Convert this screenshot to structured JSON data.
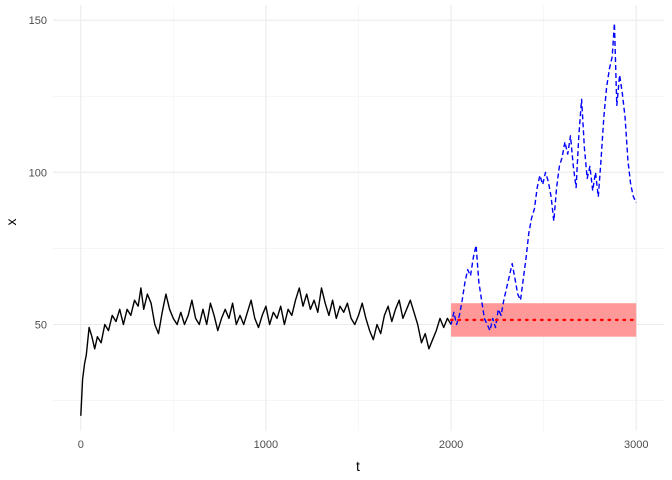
{
  "chart_data": {
    "type": "line",
    "title": "",
    "xlabel": "t",
    "ylabel": "x",
    "xlim": [
      -150,
      3150
    ],
    "ylim": [
      15,
      155
    ],
    "x_major_ticks": [
      0,
      1000,
      2000,
      3000
    ],
    "x_major_tick_labels": [
      "0",
      "1000",
      "2000",
      "3000"
    ],
    "y_major_ticks": [
      50,
      100,
      150
    ],
    "y_major_tick_labels": [
      "50",
      "100",
      "150"
    ],
    "x_minor_ticks": [
      500,
      1500,
      2500
    ],
    "y_minor_ticks": [
      25,
      75,
      125
    ],
    "grid": true,
    "legend": "none",
    "series": [
      {
        "style": "solid",
        "color": "#000000",
        "points": [
          [
            0,
            20
          ],
          [
            10,
            32
          ],
          [
            20,
            37
          ],
          [
            30,
            40
          ],
          [
            45,
            49
          ],
          [
            60,
            46
          ],
          [
            75,
            42
          ],
          [
            90,
            46
          ],
          [
            110,
            44
          ],
          [
            130,
            50
          ],
          [
            150,
            48
          ],
          [
            170,
            53
          ],
          [
            190,
            51
          ],
          [
            210,
            55
          ],
          [
            230,
            50
          ],
          [
            250,
            55
          ],
          [
            270,
            53
          ],
          [
            290,
            58
          ],
          [
            310,
            56
          ],
          [
            325,
            62
          ],
          [
            340,
            55
          ],
          [
            360,
            60
          ],
          [
            380,
            57
          ],
          [
            400,
            50
          ],
          [
            420,
            47
          ],
          [
            440,
            54
          ],
          [
            460,
            60
          ],
          [
            480,
            55
          ],
          [
            500,
            52
          ],
          [
            520,
            50
          ],
          [
            540,
            54
          ],
          [
            560,
            50
          ],
          [
            580,
            53
          ],
          [
            600,
            58
          ],
          [
            620,
            52
          ],
          [
            640,
            50
          ],
          [
            660,
            55
          ],
          [
            680,
            50
          ],
          [
            700,
            57
          ],
          [
            720,
            53
          ],
          [
            740,
            48
          ],
          [
            760,
            52
          ],
          [
            780,
            55
          ],
          [
            800,
            52
          ],
          [
            820,
            57
          ],
          [
            840,
            50
          ],
          [
            860,
            53
          ],
          [
            880,
            50
          ],
          [
            900,
            54
          ],
          [
            920,
            58
          ],
          [
            940,
            52
          ],
          [
            960,
            49
          ],
          [
            980,
            53
          ],
          [
            1000,
            56
          ],
          [
            1020,
            50
          ],
          [
            1040,
            54
          ],
          [
            1060,
            52
          ],
          [
            1080,
            56
          ],
          [
            1100,
            50
          ],
          [
            1120,
            55
          ],
          [
            1140,
            53
          ],
          [
            1160,
            58
          ],
          [
            1180,
            62
          ],
          [
            1200,
            56
          ],
          [
            1220,
            60
          ],
          [
            1240,
            55
          ],
          [
            1260,
            58
          ],
          [
            1280,
            54
          ],
          [
            1300,
            62
          ],
          [
            1320,
            57
          ],
          [
            1340,
            53
          ],
          [
            1360,
            58
          ],
          [
            1380,
            52
          ],
          [
            1400,
            56
          ],
          [
            1420,
            54
          ],
          [
            1440,
            57
          ],
          [
            1460,
            52
          ],
          [
            1480,
            50
          ],
          [
            1500,
            53
          ],
          [
            1520,
            57
          ],
          [
            1540,
            52
          ],
          [
            1560,
            48
          ],
          [
            1580,
            45
          ],
          [
            1600,
            50
          ],
          [
            1620,
            47
          ],
          [
            1640,
            53
          ],
          [
            1660,
            56
          ],
          [
            1680,
            51
          ],
          [
            1700,
            55
          ],
          [
            1720,
            58
          ],
          [
            1740,
            52
          ],
          [
            1760,
            55
          ],
          [
            1780,
            58
          ],
          [
            1800,
            54
          ],
          [
            1820,
            50
          ],
          [
            1840,
            44
          ],
          [
            1860,
            47
          ],
          [
            1880,
            42
          ],
          [
            1900,
            45
          ],
          [
            1920,
            48
          ],
          [
            1940,
            52
          ],
          [
            1960,
            49
          ],
          [
            1980,
            52
          ],
          [
            2000,
            50
          ]
        ]
      },
      {
        "style": "dashed",
        "color": "#0000ff",
        "points": [
          [
            2000,
            50
          ],
          [
            2015,
            54
          ],
          [
            2030,
            50
          ],
          [
            2045,
            53
          ],
          [
            2060,
            58
          ],
          [
            2075,
            64
          ],
          [
            2090,
            68
          ],
          [
            2105,
            66
          ],
          [
            2120,
            72
          ],
          [
            2135,
            76
          ],
          [
            2150,
            64
          ],
          [
            2165,
            58
          ],
          [
            2180,
            52
          ],
          [
            2195,
            50
          ],
          [
            2210,
            48
          ],
          [
            2225,
            52
          ],
          [
            2240,
            49
          ],
          [
            2255,
            55
          ],
          [
            2270,
            53
          ],
          [
            2285,
            58
          ],
          [
            2300,
            62
          ],
          [
            2315,
            66
          ],
          [
            2330,
            70
          ],
          [
            2345,
            65
          ],
          [
            2360,
            60
          ],
          [
            2375,
            58
          ],
          [
            2390,
            65
          ],
          [
            2405,
            72
          ],
          [
            2420,
            80
          ],
          [
            2435,
            85
          ],
          [
            2450,
            88
          ],
          [
            2465,
            95
          ],
          [
            2480,
            99
          ],
          [
            2495,
            96
          ],
          [
            2510,
            100
          ],
          [
            2525,
            97
          ],
          [
            2540,
            92
          ],
          [
            2555,
            84
          ],
          [
            2570,
            95
          ],
          [
            2585,
            102
          ],
          [
            2600,
            105
          ],
          [
            2615,
            110
          ],
          [
            2630,
            106
          ],
          [
            2645,
            112
          ],
          [
            2660,
            102
          ],
          [
            2675,
            95
          ],
          [
            2690,
            112
          ],
          [
            2705,
            124
          ],
          [
            2720,
            108
          ],
          [
            2735,
            98
          ],
          [
            2750,
            102
          ],
          [
            2765,
            94
          ],
          [
            2780,
            100
          ],
          [
            2795,
            92
          ],
          [
            2810,
            104
          ],
          [
            2825,
            118
          ],
          [
            2840,
            128
          ],
          [
            2855,
            134
          ],
          [
            2870,
            138
          ],
          [
            2882,
            149
          ],
          [
            2895,
            122
          ],
          [
            2910,
            132
          ],
          [
            2925,
            126
          ],
          [
            2940,
            118
          ],
          [
            2955,
            104
          ],
          [
            2970,
            96
          ],
          [
            2985,
            92
          ],
          [
            3000,
            90
          ]
        ]
      }
    ],
    "band": {
      "x": [
        2000,
        3000
      ],
      "y": [
        46,
        57
      ],
      "color": "#ff9999"
    },
    "hline": {
      "y": 51.5,
      "x": [
        2000,
        3000
      ],
      "style": "dotted",
      "color": "#ff0000"
    }
  }
}
